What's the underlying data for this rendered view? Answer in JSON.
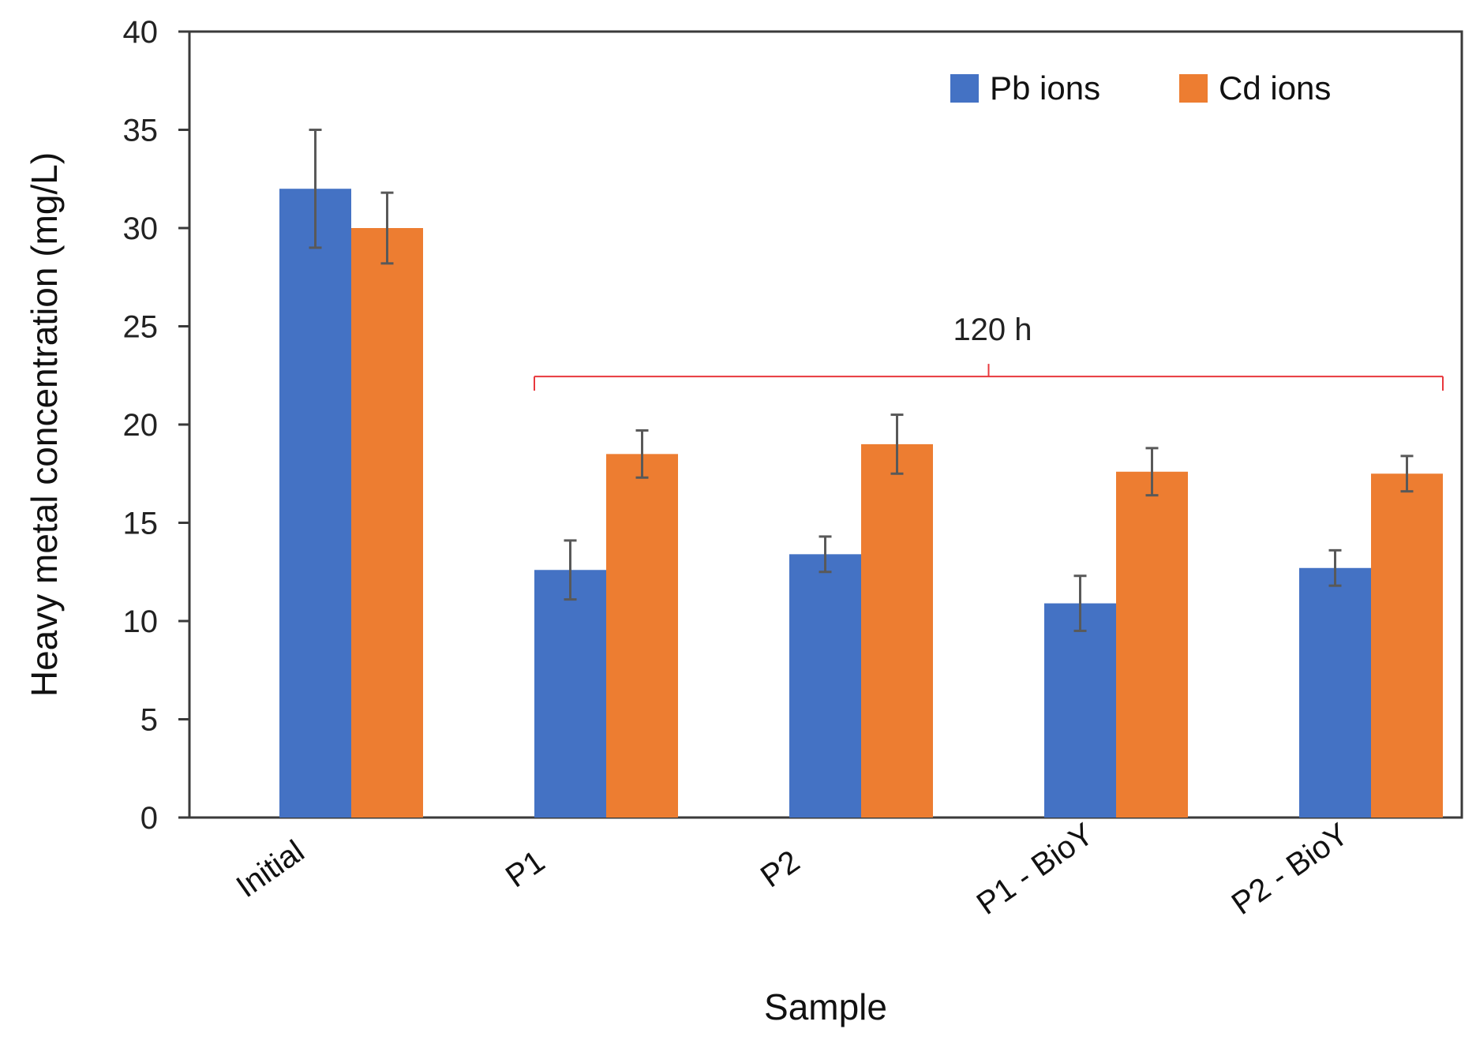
{
  "chart_data": {
    "type": "bar",
    "title": "",
    "xlabel": "Sample",
    "ylabel": "Heavy metal concentration (mg/L)",
    "ylim": [
      0,
      40
    ],
    "yticks": [
      0,
      5,
      10,
      15,
      20,
      25,
      30,
      35,
      40
    ],
    "grid": false,
    "legend_position": "top-right",
    "categories": [
      "Initial",
      "P1",
      "P2",
      "P1 - BioY",
      "P2 - BioY"
    ],
    "series": [
      {
        "name": "Pb ions",
        "color": "#4472C4",
        "values": [
          32.0,
          12.6,
          13.4,
          10.9,
          12.7
        ],
        "errors": [
          3.0,
          1.5,
          0.9,
          1.4,
          0.9
        ]
      },
      {
        "name": "Cd ions",
        "color": "#ED7D31",
        "values": [
          30.0,
          18.5,
          19.0,
          17.6,
          17.5
        ],
        "errors": [
          1.8,
          1.2,
          1.5,
          1.2,
          0.9
        ]
      }
    ],
    "annotations": [
      {
        "text": "120 h",
        "type": "bracket",
        "spans_categories": [
          "P1",
          "P2 - BioY"
        ],
        "level": 21,
        "color": "#E8383D"
      }
    ],
    "error_bar_color": "#595959"
  }
}
